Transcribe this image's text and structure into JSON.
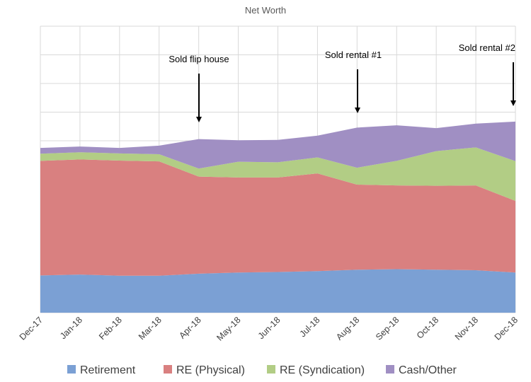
{
  "chart_data": {
    "type": "area",
    "stacked": true,
    "title": "Net Worth",
    "xlabel": "",
    "ylabel": "",
    "categories": [
      "Dec-17",
      "Jan-18",
      "Feb-18",
      "Mar-18",
      "Apr-18",
      "May-18",
      "Jun-18",
      "Jul-18",
      "Aug-18",
      "Sep-18",
      "Oct-18",
      "Nov-18",
      "Dec-18"
    ],
    "ylim": [
      0,
      10
    ],
    "grid": true,
    "legend_position": "bottom",
    "series": [
      {
        "name": "Retirement",
        "color": "#7ba0d4",
        "values": [
          1.3,
          1.33,
          1.29,
          1.29,
          1.36,
          1.4,
          1.42,
          1.45,
          1.5,
          1.52,
          1.5,
          1.48,
          1.4
        ]
      },
      {
        "name": "RE (Physical)",
        "color": "#d98080",
        "values": [
          4.0,
          4.02,
          4.02,
          3.99,
          3.39,
          3.32,
          3.3,
          3.41,
          2.97,
          2.92,
          2.93,
          2.96,
          2.5
        ]
      },
      {
        "name": "RE (Syndication)",
        "color": "#b2cd85",
        "values": [
          0.25,
          0.25,
          0.25,
          0.25,
          0.28,
          0.55,
          0.53,
          0.56,
          0.59,
          0.86,
          1.21,
          1.33,
          1.39
        ]
      },
      {
        "name": "Cash/Other",
        "color": "#a08fc3",
        "values": [
          0.2,
          0.2,
          0.19,
          0.3,
          1.03,
          0.75,
          0.78,
          0.76,
          1.4,
          1.24,
          0.8,
          0.83,
          1.38
        ]
      }
    ],
    "annotations": [
      {
        "text": "Sold flip house",
        "category": "Apr-18"
      },
      {
        "text": "Sold rental #1",
        "category": "Aug-18"
      },
      {
        "text": "Sold rental #2",
        "category": "Dec-18"
      }
    ]
  }
}
